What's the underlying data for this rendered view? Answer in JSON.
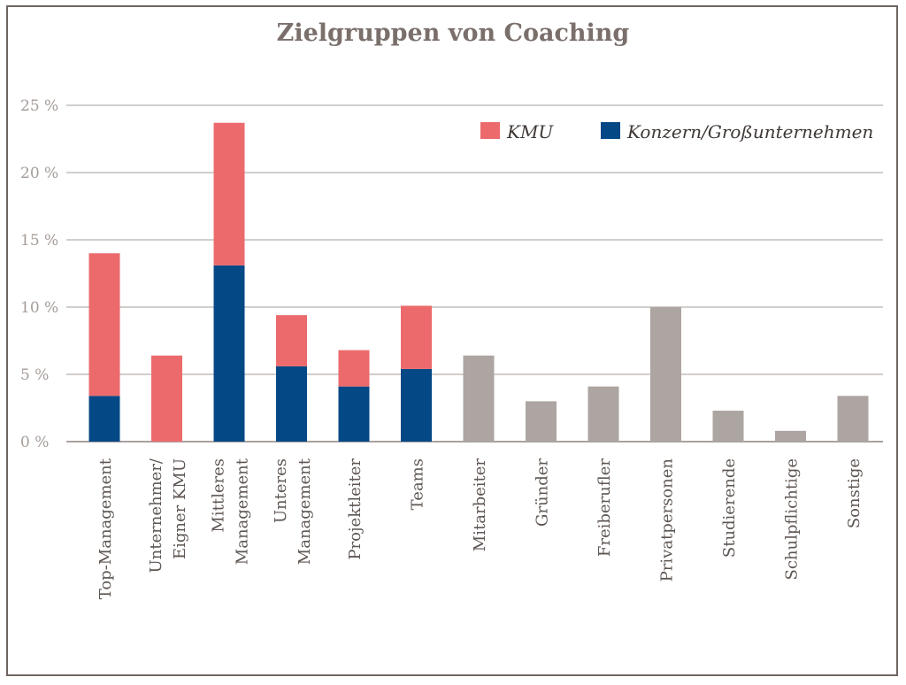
{
  "colors": {
    "kmu": "#ec6a6c",
    "konzern": "#054886",
    "other": "#ada5a1",
    "grid": "#b8b0ac",
    "axis": "#8d8480"
  },
  "chart_data": {
    "type": "bar",
    "stacked": true,
    "title": "Zielgruppen von Coaching",
    "ylim": [
      0,
      25
    ],
    "yticks": [
      0,
      5,
      10,
      15,
      20,
      25
    ],
    "ytick_labels": [
      "0 %",
      "5 %",
      "10 %",
      "15 %",
      "20 %",
      "25 %"
    ],
    "grid": true,
    "legend_position": "top-right",
    "categories": [
      "Top-Management",
      "Unternehmer/\nEigner KMU",
      "Mittleres\nManagement",
      "Unteres\nManagement",
      "Projektleiter",
      "Teams",
      "Mitarbeiter",
      "Gründer",
      "Freiberufler",
      "Privatpersonen",
      "Studierende",
      "Schulpflichtige",
      "Sonstige"
    ],
    "series": [
      {
        "name": "Konzern/Großunternehmen",
        "color_key": "konzern",
        "values": [
          3.4,
          0,
          13.1,
          5.6,
          4.1,
          5.4,
          0,
          0,
          0,
          0,
          0,
          0,
          0
        ]
      },
      {
        "name": "KMU",
        "color_key": "kmu",
        "values": [
          10.6,
          6.4,
          10.6,
          3.8,
          2.7,
          4.7,
          0,
          0,
          0,
          0,
          0,
          0,
          0
        ]
      },
      {
        "name": "",
        "color_key": "other",
        "values": [
          0,
          0,
          0,
          0,
          0,
          0,
          6.4,
          3.0,
          4.1,
          10.0,
          2.3,
          0.8,
          3.4
        ]
      }
    ],
    "legend": [
      {
        "label": "KMU",
        "color_key": "kmu"
      },
      {
        "label": "Konzern/Großunternehmen",
        "color_key": "konzern"
      }
    ]
  }
}
